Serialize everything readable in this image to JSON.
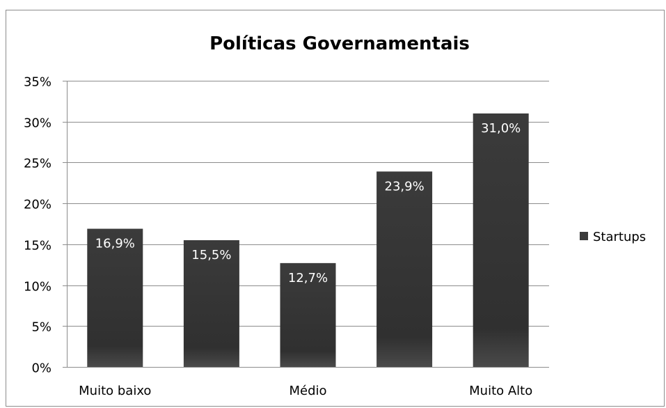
{
  "chart_data": {
    "type": "bar",
    "title": "Políticas Governamentais",
    "xlabel": "",
    "ylabel": "",
    "categories": [
      "Muito baixo",
      "",
      "Médio",
      "",
      "Muito Alto"
    ],
    "series": [
      {
        "name": "Startups",
        "values": [
          16.9,
          15.5,
          12.7,
          23.9,
          31.0
        ],
        "labels": [
          "16,9%",
          "15,5%",
          "12,7%",
          "23,9%",
          "31,0%"
        ],
        "color": "#3a3a3a"
      }
    ],
    "ylim": [
      0,
      35
    ],
    "yticks": [
      0,
      5,
      10,
      15,
      20,
      25,
      30,
      35
    ],
    "ytick_labels": [
      "0%",
      "5%",
      "10%",
      "15%",
      "20%",
      "25%",
      "30%",
      "35%"
    ],
    "grid": true,
    "legend_position": "right",
    "gridline_color": "#8c8c8c"
  }
}
